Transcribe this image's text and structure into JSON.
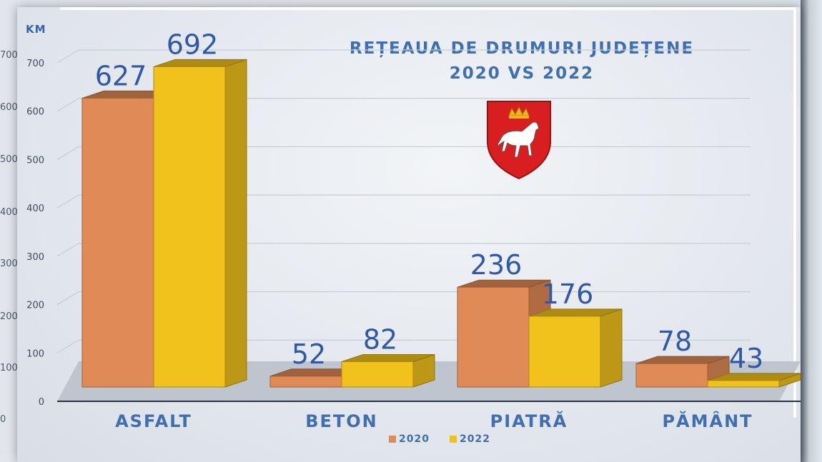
{
  "page": {
    "ylabel_unit": "KM",
    "title_line1": "REȚEAUA DE DRUMURI JUDEȚENE",
    "title_line2": "2020 VS 2022"
  },
  "legend": [
    {
      "label": "2020",
      "color": "#e08a55"
    },
    {
      "label": "2022",
      "color": "#f2c21c"
    }
  ],
  "ghost_axis": {
    "ticks": [
      "700",
      "600",
      "500",
      "400",
      "300",
      "200",
      "100",
      "0"
    ]
  },
  "chart_data": {
    "type": "bar",
    "title": "REȚEAUA DE DRUMURI JUDEȚENE 2020 VS 2022",
    "ylabel": "KM",
    "xlabel": "",
    "categories": [
      "ASFALT",
      "BETON",
      "PIATRĂ",
      "PĂMÂNT"
    ],
    "series": [
      {
        "name": "2020",
        "values": [
          627,
          52,
          236,
          78
        ],
        "color": "#e08a55"
      },
      {
        "name": "2022",
        "values": [
          692,
          82,
          176,
          43
        ],
        "color": "#f2c21c"
      }
    ],
    "ylim": [
      0,
      700
    ],
    "yticks": [
      "0",
      "100",
      "200",
      "300",
      "400",
      "500",
      "600",
      "700"
    ],
    "grid": true,
    "legend_position": "bottom-center"
  }
}
